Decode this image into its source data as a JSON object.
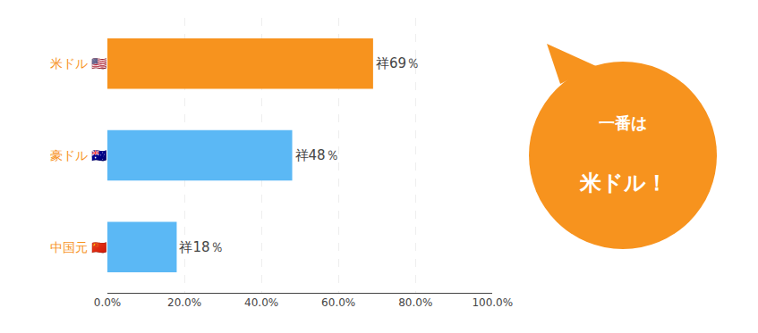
{
  "chart_data": {
    "type": "bar",
    "orientation": "horizontal",
    "categories": [
      "米ドル 🇺🇸",
      "豪ドル 🇦🇺",
      "中国元 🇨🇳"
    ],
    "values": [
      69,
      48,
      18
    ],
    "value_labels": [
      "祥69％",
      "祥48％",
      "祥18％"
    ],
    "data_labels": true,
    "colors": [
      "#F7931E",
      "#5BB8F5",
      "#5BB8F5"
    ],
    "xlim": [
      0,
      100
    ],
    "xticks": [
      {
        "value": 0,
        "label": "0.0%"
      },
      {
        "value": 20,
        "label": "20.0%"
      },
      {
        "value": 40,
        "label": "40.0%"
      },
      {
        "value": 60,
        "label": "60.0%"
      },
      {
        "value": 80,
        "label": "80.0%"
      },
      {
        "value": 100,
        "label": "100.0%"
      }
    ],
    "grid": true,
    "annotations": [
      "一番は",
      "米ドル！"
    ]
  }
}
